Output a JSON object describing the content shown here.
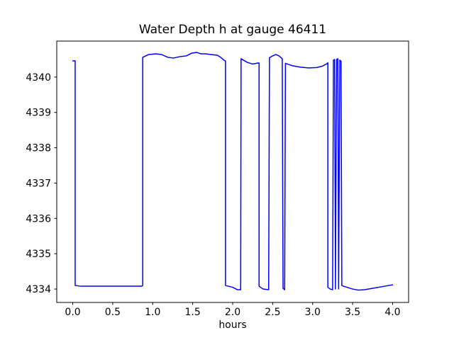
{
  "figure": {
    "title": "Water Depth h at gauge 46411",
    "xlabel": "hours",
    "background_color": "#ffffff",
    "axes_edge_color": "#000000",
    "text_color": "#000000"
  },
  "chart_data": {
    "type": "line",
    "title": "Water Depth h at gauge 46411",
    "xlabel": "hours",
    "ylabel": "",
    "grid": false,
    "legend": "none",
    "xlim": [
      -0.2,
      4.2
    ],
    "ylim": [
      4333.62,
      4341.02
    ],
    "xticks": [
      0.0,
      0.5,
      1.0,
      1.5,
      2.0,
      2.5,
      3.0,
      3.5,
      4.0
    ],
    "xtick_labels": [
      "0.0",
      "0.5",
      "1.0",
      "1.5",
      "2.0",
      "2.5",
      "3.0",
      "3.5",
      "4.0"
    ],
    "yticks": [
      4334,
      4335,
      4336,
      4337,
      4338,
      4339,
      4340
    ],
    "ytick_labels": [
      "4334",
      "4335",
      "4336",
      "4337",
      "4338",
      "4339",
      "4340"
    ],
    "series": [
      {
        "name": "water-depth-h",
        "color": "#0000ff",
        "line_width": 1.5,
        "points": [
          [
            0.0,
            4340.46
          ],
          [
            0.03,
            4340.46
          ],
          [
            0.03,
            4334.1
          ],
          [
            0.1,
            4334.08
          ],
          [
            0.5,
            4334.08
          ],
          [
            0.86,
            4334.08
          ],
          [
            0.875,
            4334.1
          ],
          [
            0.875,
            4340.56
          ],
          [
            0.95,
            4340.64
          ],
          [
            1.04,
            4340.66
          ],
          [
            1.11,
            4340.64
          ],
          [
            1.19,
            4340.56
          ],
          [
            1.26,
            4340.54
          ],
          [
            1.34,
            4340.58
          ],
          [
            1.42,
            4340.6
          ],
          [
            1.49,
            4340.68
          ],
          [
            1.55,
            4340.7
          ],
          [
            1.6,
            4340.66
          ],
          [
            1.66,
            4340.66
          ],
          [
            1.73,
            4340.64
          ],
          [
            1.81,
            4340.62
          ],
          [
            1.85,
            4340.56
          ],
          [
            1.89,
            4340.48
          ],
          [
            1.91,
            4340.46
          ],
          [
            1.91,
            4334.1
          ],
          [
            2.0,
            4334.05
          ],
          [
            2.06,
            4333.98
          ],
          [
            2.1,
            4333.98
          ],
          [
            2.105,
            4340.52
          ],
          [
            2.18,
            4340.42
          ],
          [
            2.25,
            4340.37
          ],
          [
            2.32,
            4340.4
          ],
          [
            2.33,
            4340.4
          ],
          [
            2.33,
            4334.08
          ],
          [
            2.38,
            4334.0
          ],
          [
            2.45,
            4333.98
          ],
          [
            2.46,
            4340.55
          ],
          [
            2.5,
            4340.6
          ],
          [
            2.54,
            4340.64
          ],
          [
            2.58,
            4340.6
          ],
          [
            2.62,
            4340.52
          ],
          [
            2.63,
            4334.02
          ],
          [
            2.65,
            4333.98
          ],
          [
            2.66,
            4340.39
          ],
          [
            2.75,
            4340.32
          ],
          [
            2.85,
            4340.28
          ],
          [
            2.95,
            4340.26
          ],
          [
            3.05,
            4340.27
          ],
          [
            3.12,
            4340.31
          ],
          [
            3.18,
            4340.38
          ],
          [
            3.19,
            4340.41
          ],
          [
            3.19,
            4334.05
          ],
          [
            3.22,
            4334.0
          ],
          [
            3.25,
            4333.98
          ],
          [
            3.26,
            4340.48
          ],
          [
            3.275,
            4340.5
          ],
          [
            3.285,
            4334.0
          ],
          [
            3.3,
            4340.5
          ],
          [
            3.315,
            4340.52
          ],
          [
            3.325,
            4334.0
          ],
          [
            3.34,
            4340.48
          ],
          [
            3.355,
            4340.45
          ],
          [
            3.365,
            4334.1
          ],
          [
            3.4,
            4334.07
          ],
          [
            3.5,
            4334.0
          ],
          [
            3.57,
            4333.97
          ],
          [
            3.65,
            4333.98
          ],
          [
            3.75,
            4334.02
          ],
          [
            3.85,
            4334.06
          ],
          [
            3.95,
            4334.1
          ],
          [
            4.0,
            4334.12
          ]
        ]
      }
    ]
  }
}
